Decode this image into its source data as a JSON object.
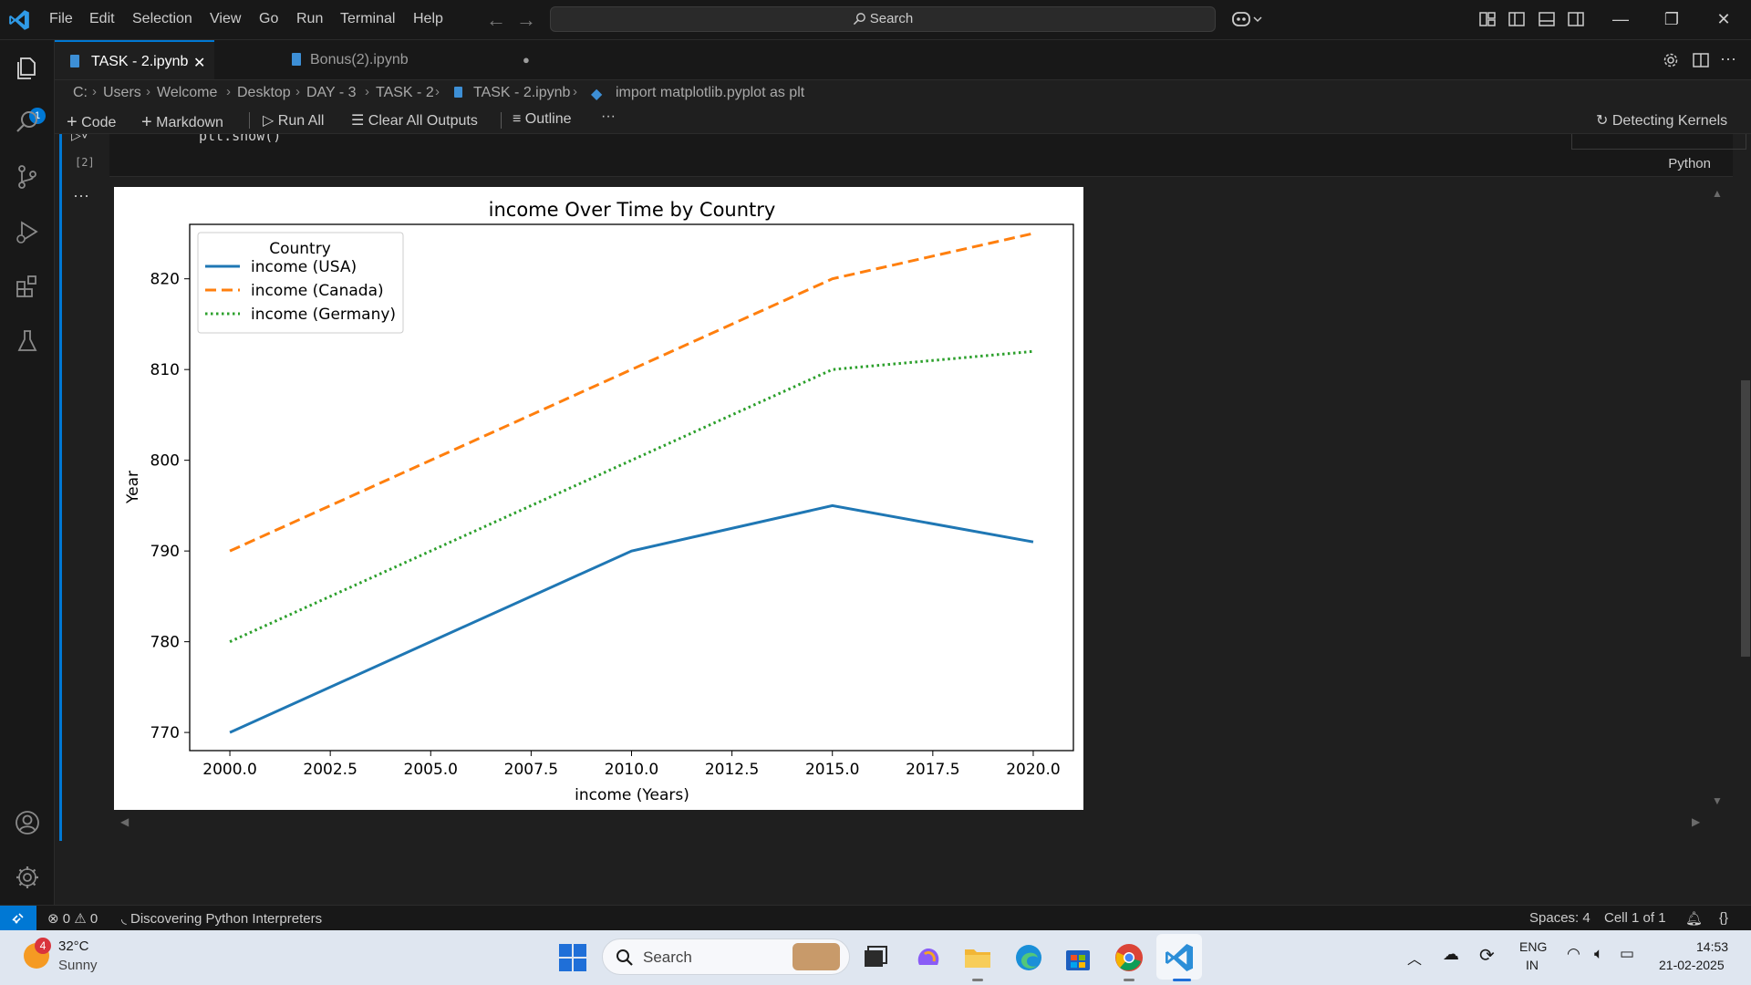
{
  "titlebar": {
    "menus": [
      "File",
      "Edit",
      "Selection",
      "View",
      "Go",
      "Run",
      "Terminal",
      "Help"
    ],
    "search_placeholder": "Search"
  },
  "activitybar": {
    "explorer_badge": "1"
  },
  "tabs": [
    {
      "label": "TASK - 2.ipynb",
      "active": true,
      "close": "✕"
    },
    {
      "label": "Bonus(2).ipynb",
      "active": false,
      "dirty": "●"
    }
  ],
  "breadcrumb": [
    "C:",
    "Users",
    "Welcome",
    "Desktop",
    "DAY - 3",
    "TASK - 2",
    "TASK - 2.ipynb",
    "import matplotlib.pyplot as plt"
  ],
  "toolbar": {
    "code": "Code",
    "markdown": "Markdown",
    "run_all": "Run All",
    "clear_outputs": "Clear All Outputs",
    "outline": "Outline",
    "more": "···",
    "kernel_status": "Detecting Kernels"
  },
  "cell": {
    "code_line": "plt.show()",
    "execution_count": "[2]",
    "language": "Python",
    "output_menu": "···"
  },
  "chart_data": {
    "type": "line",
    "title": "income Over Time by Country",
    "xlabel": "income (Years)",
    "ylabel": "Year",
    "legend_title": "Country",
    "legend_position": "upper-left",
    "x": [
      2000,
      2005,
      2010,
      2015,
      2020
    ],
    "xlim": [
      1999,
      2021
    ],
    "ylim": [
      768,
      826
    ],
    "xticks": [
      2000.0,
      2002.5,
      2005.0,
      2007.5,
      2010.0,
      2012.5,
      2015.0,
      2017.5,
      2020.0
    ],
    "xtick_labels": [
      "2000.0",
      "2002.5",
      "2005.0",
      "2007.5",
      "2010.0",
      "2012.5",
      "2015.0",
      "2017.5",
      "2020.0"
    ],
    "yticks": [
      770,
      780,
      790,
      800,
      810,
      820
    ],
    "ytick_labels": [
      "770",
      "780",
      "790",
      "800",
      "810",
      "820"
    ],
    "grid": false,
    "series": [
      {
        "name": "income (USA)",
        "values": [
          770,
          780,
          790,
          795,
          791
        ],
        "color": "#1f77b4",
        "dash": "solid"
      },
      {
        "name": "income (Canada)",
        "values": [
          790,
          800,
          810,
          820,
          825
        ],
        "color": "#ff7f0e",
        "dash": "dashed"
      },
      {
        "name": "income (Germany)",
        "values": [
          780,
          790,
          800,
          810,
          812
        ],
        "color": "#2ca02c",
        "dash": "dotted"
      }
    ]
  },
  "statusbar": {
    "errors": "0",
    "warnings": "0",
    "message": "Discovering Python Interpreters",
    "spaces": "Spaces: 4",
    "cell_position": "Cell 1 of 1"
  },
  "taskbar": {
    "weather_badge": "4",
    "temperature": "32°C",
    "weather": "Sunny",
    "search_placeholder": "Search",
    "language_line1": "ENG",
    "language_line2": "IN",
    "time": "14:53",
    "date": "21-02-2025"
  }
}
